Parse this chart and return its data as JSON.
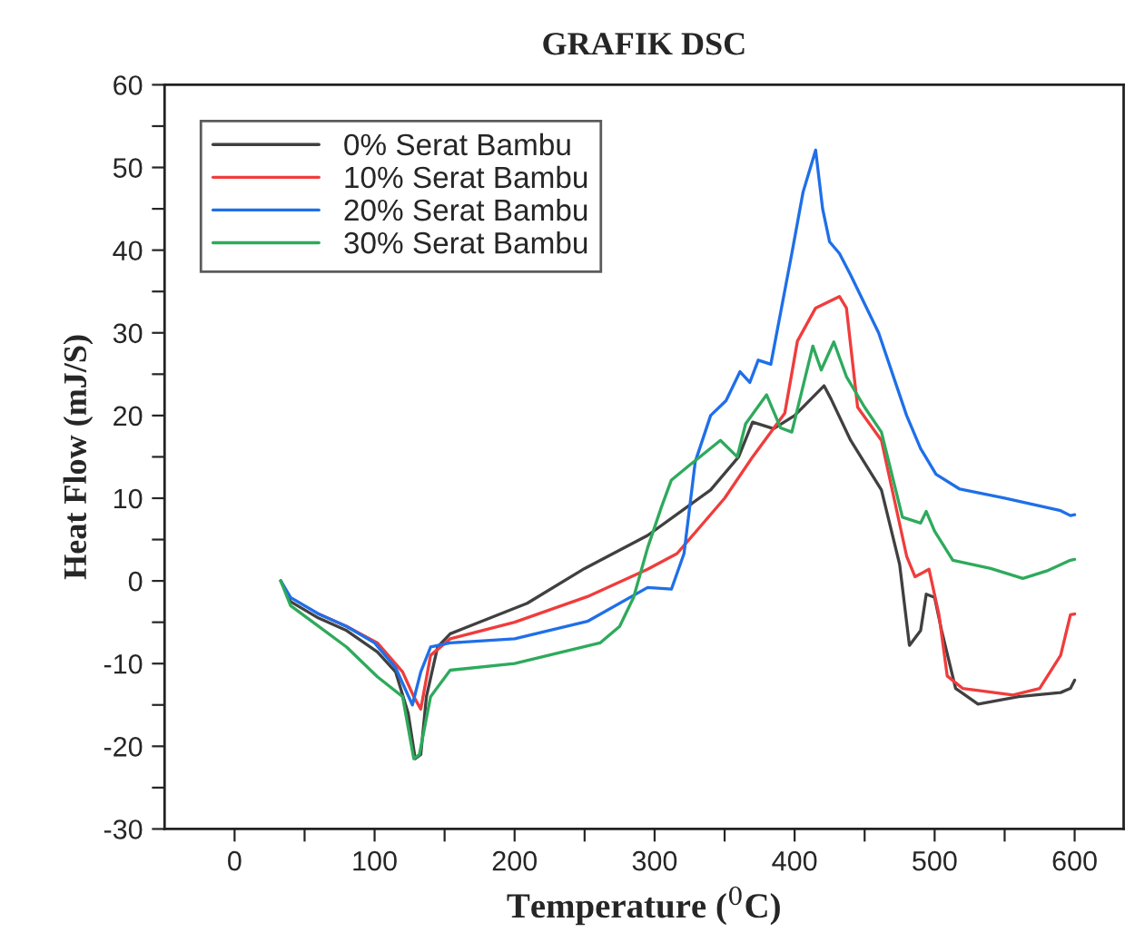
{
  "chart_data": {
    "type": "line",
    "title": "GRAFIK DSC",
    "xlabel": "Temperature ($^{0}$C)",
    "ylabel": "Heat Flow (mJ/S)",
    "xlim": [
      -50,
      635
    ],
    "ylim": [
      -30,
      60
    ],
    "xticks": [
      0,
      {
        "value": 50,
        "label": null
      },
      100,
      {
        "value": 150,
        "label": null
      },
      200,
      {
        "value": 250,
        "label": null
      },
      300,
      {
        "value": 350,
        "label": null
      },
      400,
      {
        "value": 450,
        "label": null
      },
      500,
      {
        "value": 550,
        "label": null
      },
      600
    ],
    "yticks": [
      -30,
      {
        "value": -25,
        "label": null
      },
      -20,
      {
        "value": -15,
        "label": null
      },
      -10,
      {
        "value": -5,
        "label": null
      },
      0,
      {
        "value": 5,
        "label": null
      },
      10,
      {
        "value": 15,
        "label": null
      },
      20,
      {
        "value": 25,
        "label": null
      },
      30,
      {
        "value": 35,
        "label": null
      },
      40,
      {
        "value": 45,
        "label": null
      },
      50,
      {
        "value": 55,
        "label": null
      },
      60
    ],
    "grid": false,
    "legend": "top left",
    "marker": "none",
    "line_style": "solid",
    "series": [
      {
        "name": "0% Serat Bambu",
        "color": "#404040",
        "x": [
          33,
          40,
          60,
          80,
          102,
          115,
          124,
          129,
          133,
          137,
          145,
          154,
          209,
          250,
          295,
          340,
          360,
          370,
          385,
          400,
          421,
          426,
          440,
          462,
          475,
          482,
          490,
          494,
          500,
          505,
          515,
          531,
          560,
          590,
          597,
          600
        ],
        "values": [
          0,
          -2.5,
          -4.5,
          -6,
          -8.6,
          -11,
          -16,
          -21.5,
          -21,
          -14,
          -8,
          -6.4,
          -2.7,
          1.5,
          5.5,
          11,
          15,
          19.2,
          18.4,
          20,
          23.6,
          22,
          17,
          11,
          2,
          -7.8,
          -6,
          -1.6,
          -2,
          -6,
          -13,
          -14.9,
          -14,
          -13.5,
          -13,
          -12
        ]
      },
      {
        "name": "10% Serat Bambu",
        "color": "#f03c3c",
        "x": [
          60,
          80,
          102,
          120,
          128,
          133,
          140,
          154,
          200,
          252,
          295,
          316,
          350,
          370,
          393,
          402,
          415,
          432,
          437,
          445,
          462,
          471,
          480,
          486,
          496,
          503,
          509,
          520,
          556,
          575,
          590,
          597,
          600
        ],
        "values": [
          -4,
          -5.5,
          -7.5,
          -11,
          -14,
          -15.5,
          -9,
          -7,
          -5,
          -1.9,
          1.4,
          3.3,
          10,
          15,
          20.3,
          29,
          33,
          34.4,
          33,
          21,
          17,
          10,
          3,
          0.5,
          1.4,
          -4,
          -11.5,
          -13,
          -13.8,
          -13,
          -9,
          -4.1,
          -4
        ]
      },
      {
        "name": "20% Serat Bambu",
        "color": "#1f6fe8",
        "x": [
          33,
          40,
          60,
          80,
          100,
          115,
          127,
          133,
          140,
          154,
          200,
          252,
          295,
          312,
          321,
          329,
          340,
          351,
          361,
          368,
          374,
          383,
          398,
          406,
          415,
          420,
          425,
          432,
          440,
          460,
          480,
          490,
          501,
          518,
          550,
          590,
          597,
          600
        ],
        "values": [
          0,
          -2,
          -4,
          -5.5,
          -7.5,
          -10.5,
          -15,
          -11,
          -8,
          -7.5,
          -7,
          -4.9,
          -0.8,
          -1,
          3.3,
          14.4,
          20,
          21.8,
          25.3,
          24,
          26.7,
          26.2,
          39.6,
          47,
          52.1,
          45,
          41,
          39.6,
          37,
          30,
          20,
          16,
          12.9,
          11.1,
          10,
          8.5,
          7.9,
          8
        ]
      },
      {
        "name": "30% Serat Bambu",
        "color": "#2eaa5c",
        "x": [
          33,
          40,
          60,
          80,
          102,
          120,
          128,
          132,
          140,
          154,
          200,
          261,
          275,
          285,
          295,
          305,
          312,
          325,
          347,
          359,
          365,
          380,
          390,
          398,
          413,
          419,
          428,
          437,
          450,
          462,
          477,
          490,
          494,
          500,
          513,
          540,
          563,
          580,
          597,
          600
        ],
        "values": [
          0,
          -3,
          -5.5,
          -8,
          -11.6,
          -14,
          -21.5,
          -21,
          -14,
          -10.8,
          -10,
          -7.5,
          -5.5,
          -2,
          4,
          9,
          12.2,
          14,
          17,
          15,
          19,
          22.5,
          18.5,
          18,
          28.4,
          25.5,
          28.9,
          24.7,
          21,
          18,
          7.7,
          7,
          8.4,
          6,
          2.5,
          1.5,
          0.3,
          1.2,
          2.5,
          2.6
        ]
      }
    ]
  }
}
